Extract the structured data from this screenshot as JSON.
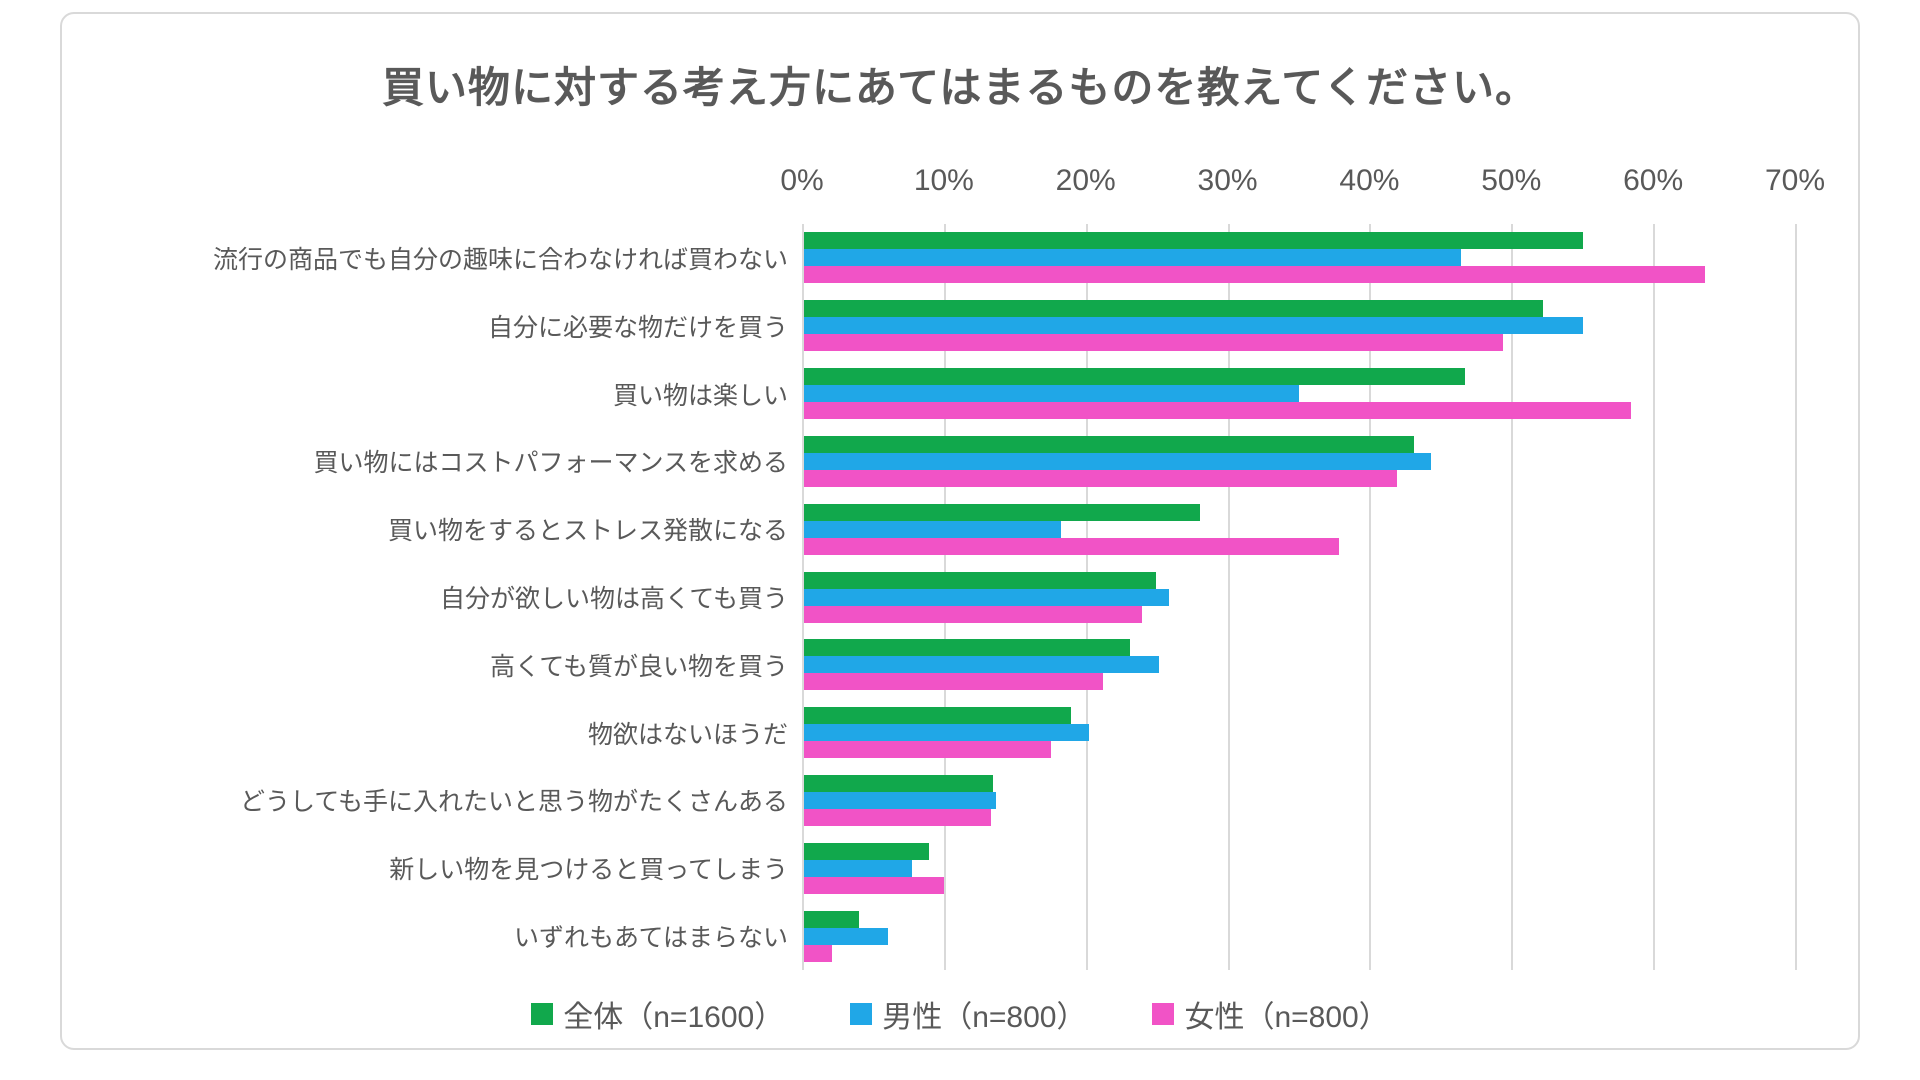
{
  "page": {
    "background": "#ffffff",
    "card_border": "#d9d9d9"
  },
  "style": {
    "text_color": "#595959",
    "grid_color": "#d9d9d9",
    "series_colors": {
      "overall": "#11a84c",
      "male": "#20a7e7",
      "female": "#f153c6"
    }
  },
  "chart_data": {
    "type": "bar",
    "orientation": "horizontal",
    "title": "買い物に対する考え方にあてはまるものを教えてください。",
    "categories": [
      "流行の商品でも自分の趣味に合わなければ買わない",
      "自分に必要な物だけを買う",
      "買い物は楽しい",
      "買い物にはコストパフォーマンスを求める",
      "買い物をするとストレス発散になる",
      "自分が欲しい物は高くても買う",
      "高くても質が良い物を買う",
      "物欲はないほうだ",
      "どうしても手に入れたいと思う物がたくさんある",
      "新しい物を見つけると買ってしまう",
      "いずれもあてはまらない"
    ],
    "series": [
      {
        "name": "全体（n=1600）",
        "color": "#11a84c",
        "values": [
          54.9,
          52.1,
          46.6,
          43.0,
          27.9,
          24.8,
          23.0,
          18.8,
          13.3,
          8.8,
          3.9
        ]
      },
      {
        "name": "男性（n=800）",
        "color": "#20a7e7",
        "values": [
          46.3,
          54.9,
          34.9,
          44.2,
          18.1,
          25.7,
          25.0,
          20.1,
          13.5,
          7.6,
          5.9
        ]
      },
      {
        "name": "女性（n=800）",
        "color": "#f153c6",
        "values": [
          63.5,
          49.3,
          58.3,
          41.8,
          37.7,
          23.8,
          21.1,
          17.4,
          13.2,
          9.9,
          2.0
        ]
      }
    ],
    "x_axis": {
      "unit": "%",
      "min": 0,
      "max": 70,
      "tick_step": 10,
      "tick_labels": [
        "0%",
        "10%",
        "20%",
        "30%",
        "40%",
        "50%",
        "60%",
        "70%"
      ],
      "position": "top"
    },
    "grid": true,
    "legend_position": "bottom"
  }
}
